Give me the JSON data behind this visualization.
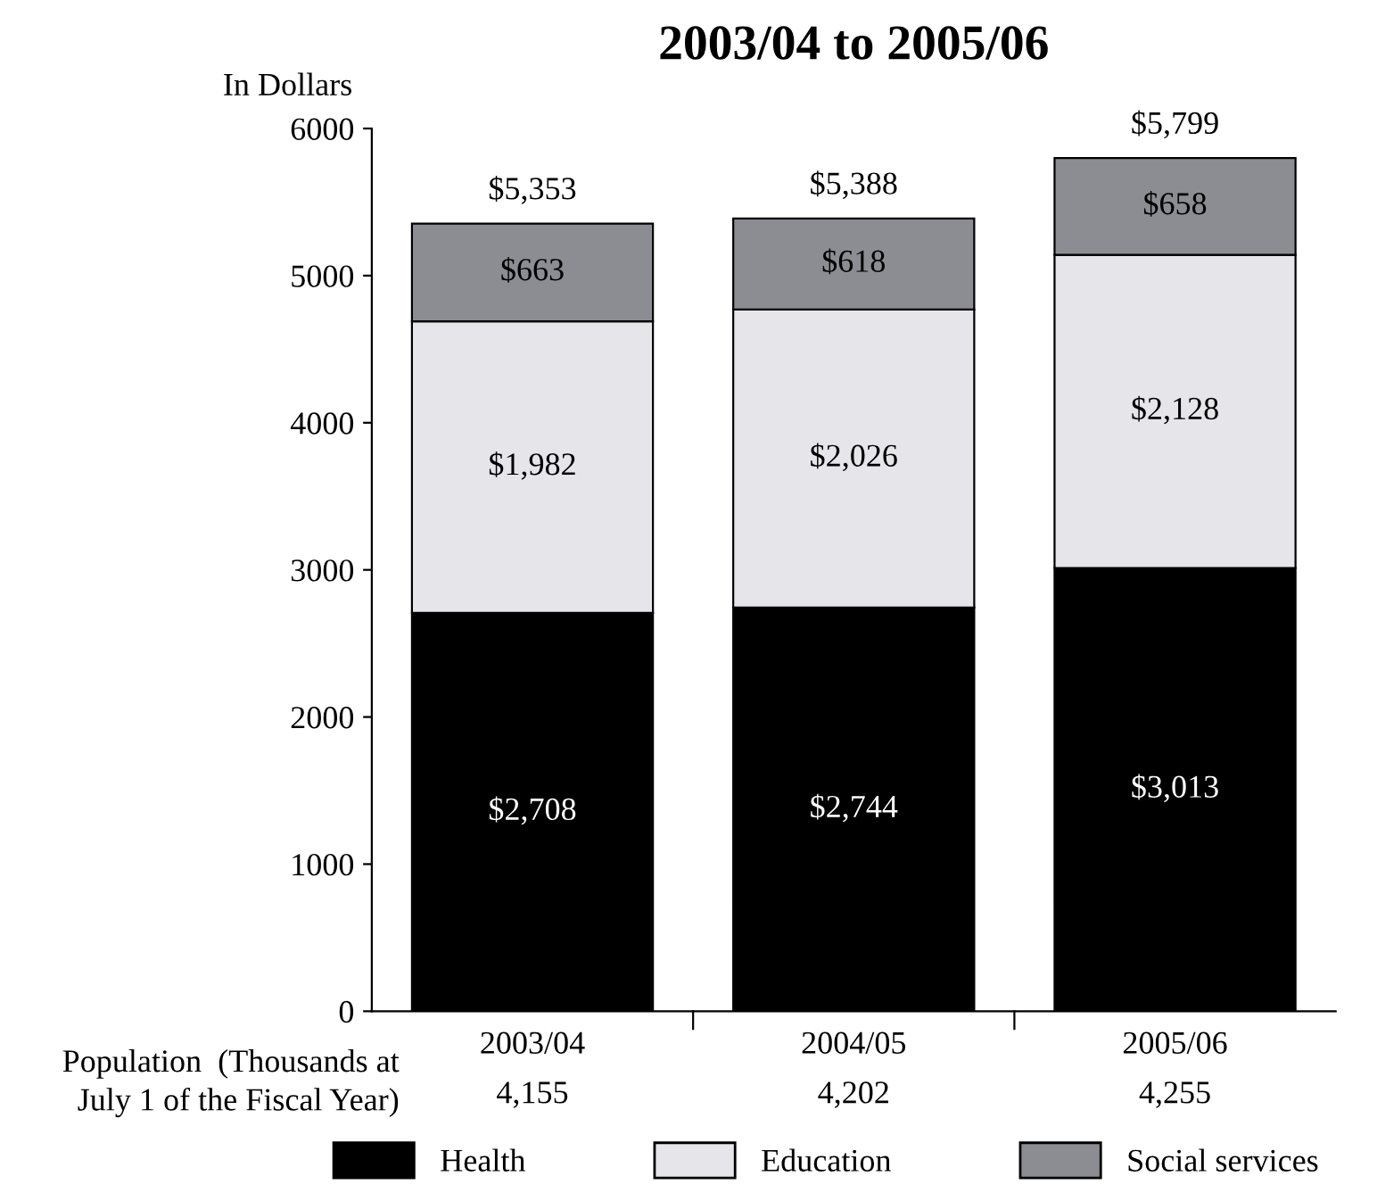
{
  "chart_data": {
    "type": "bar",
    "title": "2003/04 to 2005/06",
    "ylabel": "In Dollars",
    "categories": [
      "2003/04",
      "2004/05",
      "2005/06"
    ],
    "stacked": true,
    "series": [
      {
        "name": "Health",
        "color": "#000000",
        "values": [
          2708,
          2744,
          3013
        ],
        "value_labels": [
          "$2,708",
          "$2,744",
          "$3,013"
        ]
      },
      {
        "name": "Education",
        "color": "#e6e5ea",
        "values": [
          1982,
          2026,
          2128
        ],
        "value_labels": [
          "$1,982",
          "$2,026",
          "$2,128"
        ]
      },
      {
        "name": "Social services",
        "color": "#8c8d93",
        "values": [
          663,
          618,
          658
        ],
        "value_labels": [
          "$663",
          "$618",
          "$658"
        ]
      }
    ],
    "totals": [
      "$5,353",
      "$5,388",
      "$5,799"
    ],
    "ylim": [
      0,
      6000
    ],
    "yticks": [
      0,
      1000,
      2000,
      3000,
      4000,
      5000,
      6000
    ],
    "grid": false,
    "legend": "bottom",
    "annotations": [
      "Population  (Thousands at\nJuly 1 of the Fiscal Year)",
      "4,155",
      "4,202",
      "4,255"
    ]
  }
}
